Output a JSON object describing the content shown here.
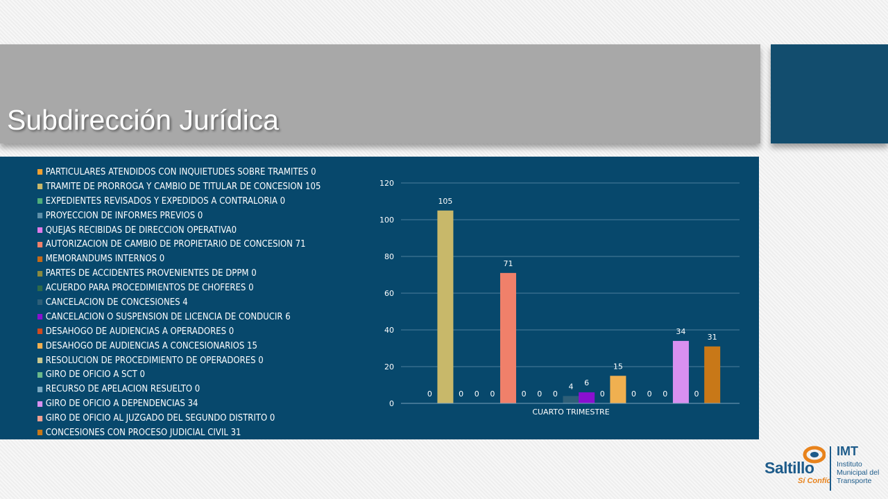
{
  "slide": {
    "title": "Subdirección Jurídica"
  },
  "colors": {
    "panel_bg": "#07486c",
    "title_band": "#a8a8a8",
    "accent_box": "#124d6e"
  },
  "logo": {
    "brand": "Saltillo",
    "tagline": "Sí Confío",
    "org_abbr": "IMT",
    "org_name_lines": [
      "Instituto",
      "Municipal del",
      "Transporte"
    ]
  },
  "chart_data": {
    "type": "bar",
    "title": "",
    "xlabel": "",
    "ylabel": "",
    "categories": [
      "CUARTO TRIMESTRE"
    ],
    "ylim": [
      0,
      120
    ],
    "yticks": [
      0,
      20,
      40,
      60,
      80,
      100,
      120
    ],
    "grid": true,
    "legend_position": "left",
    "series": [
      {
        "name": "PARTICULARES ATENDIDOS CON INQUIETUDES SOBRE TRAMITES 0",
        "values": [
          0
        ],
        "color": "#f0a030"
      },
      {
        "name": "TRAMITE DE PRORROGA Y CAMBIO DE TITULAR DE CONCESION 105",
        "values": [
          105
        ],
        "color": "#c8b86a"
      },
      {
        "name": "EXPEDIENTES REVISADOS Y EXPEDIDOS A CONTRALORIA 0",
        "values": [
          0
        ],
        "color": "#4fae7a"
      },
      {
        "name": "PROYECCION DE INFORMES PREVIOS 0",
        "values": [
          0
        ],
        "color": "#5d8fa8"
      },
      {
        "name": "QUEJAS RECIBIDAS DE DIRECCION OPERATIVA0",
        "values": [
          0
        ],
        "color": "#e07ae8"
      },
      {
        "name": "AUTORIZACION DE CAMBIO DE PROPIETARIO DE CONCESION 71",
        "values": [
          71
        ],
        "color": "#f0806a"
      },
      {
        "name": "MEMORANDUMS INTERNOS 0",
        "values": [
          0
        ],
        "color": "#c46a1a"
      },
      {
        "name": "PARTES DE ACCIDENTES  PROVENIENTES DE DPPM 0",
        "values": [
          0
        ],
        "color": "#8a8a40"
      },
      {
        "name": "ACUERDO PARA PROCEDIMIENTOS DE CHOFERES 0",
        "values": [
          0
        ],
        "color": "#2e6a4a"
      },
      {
        "name": "CANCELACION DE CONCESIONES 4",
        "values": [
          4
        ],
        "color": "#2e5f78"
      },
      {
        "name": "CANCELACION O SUSPENSION DE LICENCIA DE CONDUCIR 6",
        "values": [
          6
        ],
        "color": "#8a10d0"
      },
      {
        "name": "DESAHOGO DE AUDIENCIAS A OPERADORES 0",
        "values": [
          0
        ],
        "color": "#d04a20"
      },
      {
        "name": "DESAHOGO DE AUDIENCIAS A CONCESIONARIOS 15",
        "values": [
          15
        ],
        "color": "#f0b050"
      },
      {
        "name": "RESOLUCION DE PROCEDIMIENTO DE OPERADORES 0",
        "values": [
          0
        ],
        "color": "#c8c890"
      },
      {
        "name": "GIRO DE OFICIO A SCT 0",
        "values": [
          0
        ],
        "color": "#6ab88a"
      },
      {
        "name": "RECURSO DE APELACION RESUELTO 0",
        "values": [
          0
        ],
        "color": "#7aa8c0"
      },
      {
        "name": "GIRO DE OFICIO A DEPENDENCIAS 34",
        "values": [
          34
        ],
        "color": "#d890f0"
      },
      {
        "name": "GIRO DE OFICIO AL JUZGADO DEL SEGUNDO DISTRITO 0",
        "values": [
          0
        ],
        "color": "#f0a090"
      },
      {
        "name": "CONCESIONES CON PROCESO JUDICIAL CIVIL 31",
        "values": [
          31
        ],
        "color": "#c87818"
      }
    ]
  }
}
